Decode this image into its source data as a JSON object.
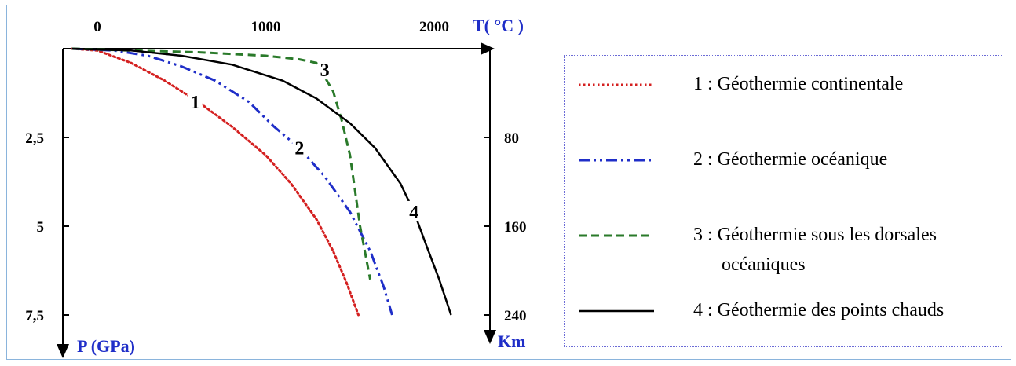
{
  "chart_data": {
    "type": "line",
    "x_axis": {
      "label": "T( °C )",
      "ticks": [
        0,
        1000,
        2000
      ]
    },
    "y_axis_left": {
      "label": "P (GPa)",
      "ticks": [
        "2,5",
        "5",
        "7,5"
      ]
    },
    "y_axis_right": {
      "label": "Km",
      "ticks": [
        "80",
        "160",
        "240"
      ]
    },
    "ylim": [
      0,
      7.5
    ],
    "series": [
      {
        "name": "1 : Géothermie continentale",
        "curve_label": "1",
        "color": "#d42020",
        "style": "dotted",
        "points": [
          [
            -150,
            0
          ],
          [
            0,
            0.05
          ],
          [
            200,
            0.4
          ],
          [
            400,
            0.9
          ],
          [
            600,
            1.5
          ],
          [
            800,
            2.2
          ],
          [
            1000,
            3.0
          ],
          [
            1150,
            3.8
          ],
          [
            1300,
            4.8
          ],
          [
            1400,
            5.7
          ],
          [
            1480,
            6.6
          ],
          [
            1550,
            7.5
          ]
        ]
      },
      {
        "name": "2 : Géothermie océanique",
        "curve_label": "2",
        "color": "#1f2ec8",
        "style": "dashdotdot",
        "points": [
          [
            -150,
            0
          ],
          [
            100,
            0.05
          ],
          [
            300,
            0.2
          ],
          [
            500,
            0.5
          ],
          [
            700,
            0.9
          ],
          [
            900,
            1.5
          ],
          [
            1050,
            2.2
          ],
          [
            1200,
            2.8
          ],
          [
            1350,
            3.6
          ],
          [
            1500,
            4.6
          ],
          [
            1620,
            5.7
          ],
          [
            1700,
            6.7
          ],
          [
            1750,
            7.5
          ]
        ]
      },
      {
        "name": "3 : Géothermie sous les dorsales océaniques",
        "curve_label": "3",
        "color": "#2a7a2a",
        "style": "dashed",
        "points": [
          [
            -150,
            0
          ],
          [
            200,
            0.05
          ],
          [
            600,
            0.1
          ],
          [
            1000,
            0.2
          ],
          [
            1200,
            0.3
          ],
          [
            1300,
            0.4
          ],
          [
            1400,
            1.2
          ],
          [
            1450,
            2.0
          ],
          [
            1500,
            3.0
          ],
          [
            1530,
            4.0
          ],
          [
            1560,
            5.0
          ],
          [
            1600,
            6.0
          ],
          [
            1620,
            6.5
          ]
        ]
      },
      {
        "name": "4 : Géothermie des points chauds",
        "curve_label": "4",
        "color": "#000000",
        "style": "solid",
        "points": [
          [
            -150,
            0
          ],
          [
            200,
            0.05
          ],
          [
            500,
            0.2
          ],
          [
            800,
            0.45
          ],
          [
            1100,
            0.9
          ],
          [
            1300,
            1.4
          ],
          [
            1500,
            2.1
          ],
          [
            1650,
            2.8
          ],
          [
            1800,
            3.8
          ],
          [
            1880,
            4.6
          ],
          [
            1950,
            5.5
          ],
          [
            2030,
            6.5
          ],
          [
            2100,
            7.5
          ]
        ]
      }
    ]
  },
  "legend": {
    "items": [
      {
        "lines": [
          "1 : Géothermie continentale"
        ],
        "color": "#d42020",
        "style": "dotted"
      },
      {
        "lines": [
          "2 : Géothermie océanique"
        ],
        "color": "#1f2ec8",
        "style": "dashdotdot"
      },
      {
        "lines": [
          "3 : Géothermie sous les dorsales",
          "océaniques"
        ],
        "color": "#2a7a2a",
        "style": "dashed"
      },
      {
        "lines": [
          "4 : Géothermie des points chauds"
        ],
        "color": "#000000",
        "style": "solid"
      }
    ]
  }
}
